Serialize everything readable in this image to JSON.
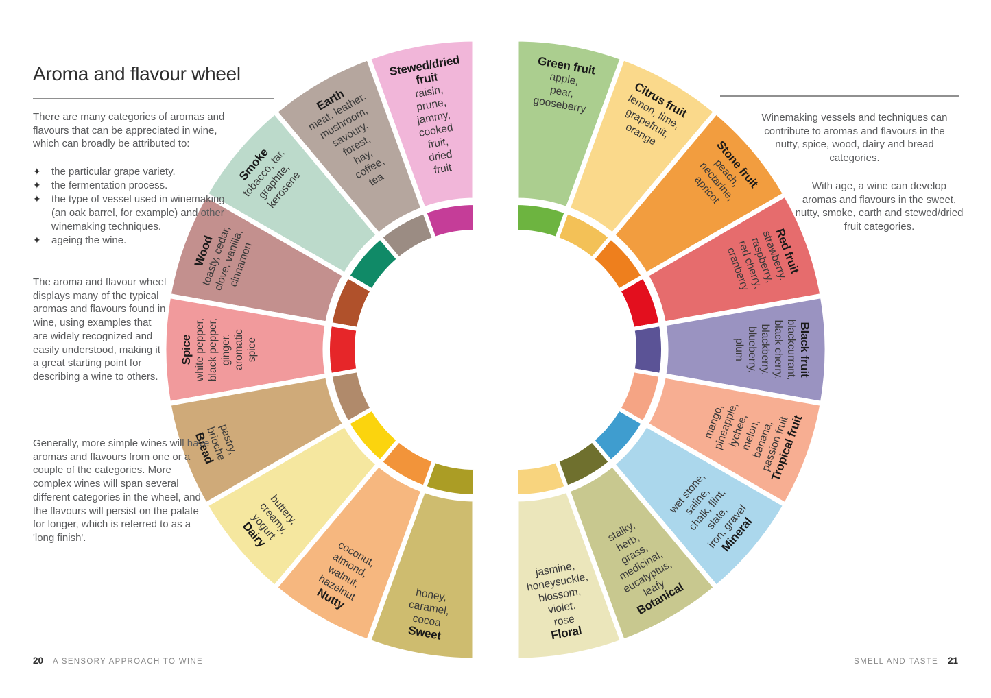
{
  "left_page": {
    "title": "Aroma and flavour wheel",
    "intro": "There are many categories of aromas and flavours that can be appreciated in wine, which can broadly be attributed to:",
    "bullet_glyph": "✦",
    "bullets": [
      "the particular grape variety.",
      "the fermentation process.",
      "the type of vessel used in winemaking (an oak barrel, for example) and other winemaking techniques.",
      "ageing the wine."
    ],
    "para2": "The aroma and flavour wheel displays many of the typical aromas and flavours found in wine, using examples that are widely recognized and easily understood, making it a great starting point for describing a wine to others.",
    "para3": "Generally, more simple wines will have aromas and flavours from one or a couple of the categories. More complex wines will span several different categories in the wheel, and the flavours will persist on the palate for longer, which is referred to as a 'long finish'.",
    "footer_page_num": "20",
    "footer_text": "A SENSORY APPROACH TO WINE"
  },
  "right_page": {
    "para1": "Winemaking vessels and techniques can contribute to aromas and flavours in the nutty, spice, wood, dairy and bread categories.",
    "para2": "With age, a wine can develop aromas and flavours in the sweet, nutty, smoke, earth and stewed/dried fruit categories.",
    "footer_text": "SMELL AND TASTE",
    "footer_page_num": "21"
  },
  "wheel": {
    "left_half": [
      {
        "label": "Stewed/dried fruit",
        "label_lines": [
          "Stewed/dried",
          "fruit"
        ],
        "desc_lines": [
          "raisin,",
          "prune,",
          "jammy,",
          "cooked",
          "fruit,",
          "dried",
          "fruit"
        ],
        "color": "#f1b6d9",
        "inner_color": "#c53d98"
      },
      {
        "label": "Earth",
        "label_lines": [
          "Earth"
        ],
        "desc_lines": [
          "meat, leather,",
          "mushroom,",
          "savoury,",
          "forest,",
          "hay,",
          "coffee,",
          "tea"
        ],
        "color": "#b5a69e",
        "inner_color": "#9b8c83"
      },
      {
        "label": "Smoke",
        "label_lines": [
          "Smoke"
        ],
        "desc_lines": [
          "tobacco, tar,",
          "graphite,",
          "kerosene"
        ],
        "color": "#bcdacb",
        "inner_color": "#108a67"
      },
      {
        "label": "Wood",
        "label_lines": [
          "Wood"
        ],
        "desc_lines": [
          "toasty, cedar,",
          "clove, vanilla,",
          "cinnamon"
        ],
        "color": "#c3908e",
        "inner_color": "#b0512b"
      },
      {
        "label": "Spice",
        "label_lines": [
          "Spice"
        ],
        "desc_lines": [
          "white pepper,",
          "black pepper,",
          "ginger,",
          "aromatic",
          "spice"
        ],
        "color": "#f19a9c",
        "inner_color": "#e62629"
      },
      {
        "label": "Bread",
        "label_lines": [
          "Bread"
        ],
        "desc_lines": [
          "pastry,",
          "brioche"
        ],
        "color": "#cfaa79",
        "inner_color": "#b08a6b"
      },
      {
        "label": "Dairy",
        "label_lines": [
          "Dairy"
        ],
        "desc_lines": [
          "buttery,",
          "creamy,",
          "yogurt"
        ],
        "color": "#f5e79f",
        "inner_color": "#fbd40e"
      },
      {
        "label": "Nutty",
        "label_lines": [
          "Nutty"
        ],
        "desc_lines": [
          "coconut,",
          "almond,",
          "walnut,",
          "hazelnut"
        ],
        "color": "#f6b77f",
        "inner_color": "#f2943a"
      },
      {
        "label": "Sweet",
        "label_lines": [
          "Sweet"
        ],
        "desc_lines": [
          "honey,",
          "caramel,",
          "cocoa"
        ],
        "color": "#cebc6f",
        "inner_color": "#ab9d25"
      }
    ],
    "right_half": [
      {
        "label": "Green fruit",
        "label_lines": [
          "Green fruit"
        ],
        "desc_lines": [
          "apple,",
          "pear,",
          "gooseberry"
        ],
        "color": "#abce8f",
        "inner_color": "#6db440"
      },
      {
        "label": "Citrus fruit",
        "label_lines": [
          "Citrus fruit"
        ],
        "desc_lines": [
          "lemon, lime,",
          "grapefruit,",
          "orange"
        ],
        "color": "#fad98b",
        "inner_color": "#f3c157"
      },
      {
        "label": "Stone fruit",
        "label_lines": [
          "Stone fruit"
        ],
        "desc_lines": [
          "peach,",
          "nectarine,",
          "apricot"
        ],
        "color": "#f29d3f",
        "inner_color": "#ee7f1d"
      },
      {
        "label": "Red fruit",
        "label_lines": [
          "Red fruit"
        ],
        "desc_lines": [
          "strawberry,",
          "raspberry,",
          "red cherry,",
          "cranberry"
        ],
        "color": "#e66c6d",
        "inner_color": "#e30f1e"
      },
      {
        "label": "Black fruit",
        "label_lines": [
          "Black fruit"
        ],
        "desc_lines": [
          "blackcurrant,",
          "black cherry,",
          "blackberry,",
          "blueberry,",
          "plum"
        ],
        "color": "#9a93c1",
        "inner_color": "#5b5396"
      },
      {
        "label": "Tropical fruit",
        "label_lines": [
          "Tropical fruit"
        ],
        "desc_lines": [
          "mango,",
          "pineapple,",
          "lychee,",
          "melon,",
          "banana,",
          "passion fruit"
        ],
        "color": "#f7ae92",
        "inner_color": "#f5a484"
      },
      {
        "label": "Mineral",
        "label_lines": [
          "Mineral"
        ],
        "desc_lines": [
          "wet stone,",
          "saline,",
          "chalk, flint,",
          "slate,",
          "iron, gravel"
        ],
        "color": "#abd7ec",
        "inner_color": "#3f9dcf"
      },
      {
        "label": "Botanical",
        "label_lines": [
          "Botanical"
        ],
        "desc_lines": [
          "stalky,",
          "herb,",
          "grass,",
          "medicinal,",
          "eucalyptus,",
          "leafy"
        ],
        "color": "#c8c88f",
        "inner_color": "#6f702e"
      },
      {
        "label": "Floral",
        "label_lines": [
          "Floral"
        ],
        "desc_lines": [
          "jasmine,",
          "honeysuckle,",
          "blossom,",
          "violet,",
          "rose"
        ],
        "color": "#ebe6bb",
        "inner_color": "#f8d47e"
      }
    ]
  }
}
